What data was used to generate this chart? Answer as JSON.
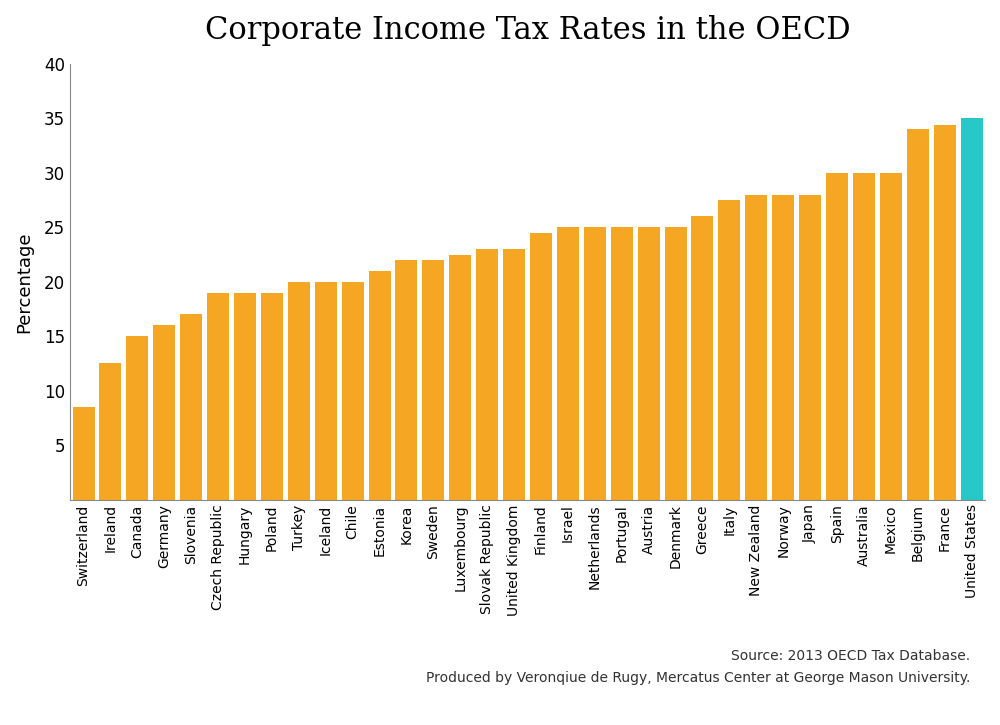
{
  "title": "Corporate Income Tax Rates in the OECD",
  "ylabel": "Percentage",
  "categories": [
    "Switzerland",
    "Ireland",
    "Canada",
    "Germany",
    "Slovenia",
    "Czech Republic",
    "Hungary",
    "Poland",
    "Turkey",
    "Iceland",
    "Chile",
    "Estonia",
    "Korea",
    "Sweden",
    "Luxembourg",
    "Slovak Republic",
    "United Kingdom",
    "Finland",
    "Israel",
    "Netherlands",
    "Portugal",
    "Austria",
    "Denmark",
    "Greece",
    "Italy",
    "New Zealand",
    "Norway",
    "Japan",
    "Spain",
    "Australia",
    "Mexico",
    "Belgium",
    "France",
    "United States"
  ],
  "values": [
    8.5,
    12.5,
    15.0,
    16.0,
    17.0,
    19.0,
    19.0,
    19.0,
    20.0,
    20.0,
    20.0,
    21.0,
    22.0,
    22.0,
    22.5,
    23.0,
    23.0,
    24.5,
    25.0,
    25.0,
    25.0,
    25.0,
    25.0,
    26.0,
    27.5,
    28.0,
    28.0,
    28.0,
    30.0,
    30.0,
    30.0,
    34.0,
    34.4,
    35.0
  ],
  "bar_color_default": "#F5A623",
  "bar_color_us": "#28C8C8",
  "source_line1": "Source: 2013 OECD Tax Database.",
  "source_line2": "Produced by Veronqiue de Rugy, Mercatus Center at George Mason University.",
  "ylim": [
    0,
    40
  ],
  "yticks": [
    5,
    10,
    15,
    20,
    25,
    30,
    35,
    40
  ],
  "title_fontsize": 22,
  "ylabel_fontsize": 13,
  "tick_fontsize": 12,
  "xtick_fontsize": 10,
  "source_fontsize": 10,
  "background_color": "#FFFFFF",
  "spine_color": "#888888",
  "bar_width": 0.82
}
